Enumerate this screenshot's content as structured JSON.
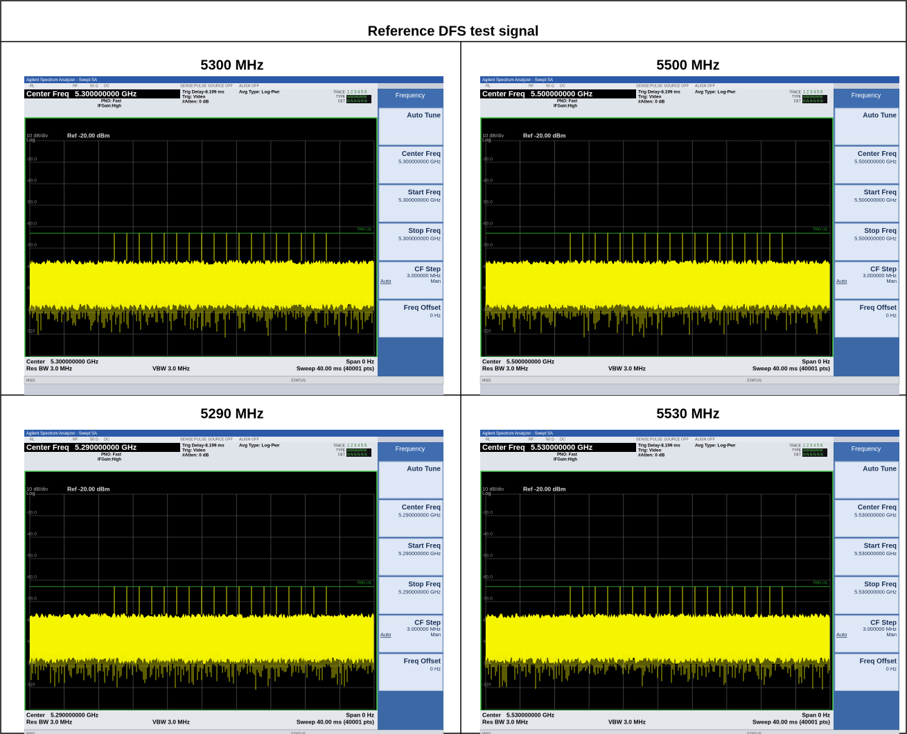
{
  "header": {
    "title": "Reference DFS test signal"
  },
  "analyzer": {
    "window_title": "Agilent Spectrum Analyzer - Swept SA",
    "status_row": [
      "RL",
      "RF",
      "50 Ω",
      "DC",
      "SENSE:PULSE",
      "SOURCE OFF",
      "ALIGN OFF"
    ],
    "center_freq_label": "Center Freq",
    "trig_delay": "Trig Delay-8.199 ms",
    "trig": "Trig: Video",
    "atten": "#Atten: 0 dB",
    "pno": "PNO: Fast",
    "ifgain": "IFGain:High",
    "avg_type": "Avg Type: Log-Pwr",
    "trace_labels": [
      "TRACE",
      "TYPE",
      "DET"
    ],
    "trace_numbers": "1 2 3 4 5 6",
    "trace_type": "WWWWWW",
    "trace_det": "N N N N N N",
    "scale": "10 dB/div",
    "log": "Log",
    "ref": "Ref -20.00 dBm",
    "trig_lvl": "TRIG LVL",
    "y_labels": [
      "-30.0",
      "-40.0",
      "-50.0",
      "-60.0",
      "-70.0",
      "-80.0",
      "-90.0",
      "-100",
      "-110"
    ],
    "center_label": "Center",
    "span": "Span 0 Hz",
    "res_bw": "Res BW 3.0 MHz",
    "vbw": "VBW 3.0 MHz",
    "sweep": "Sweep  40.00 ms (40001 pts)",
    "msg": "MSG",
    "status": "STATUS",
    "menu": "Frequency",
    "softkeys": [
      {
        "label": "Auto Tune"
      },
      {
        "label": "Center Freq"
      },
      {
        "label": "Start Freq"
      },
      {
        "label": "Stop Freq"
      },
      {
        "label": "CF Step",
        "value": "3.000000 MHz",
        "left": "Auto",
        "right": "Man"
      },
      {
        "label": "Freq Offset",
        "value": "0 Hz"
      }
    ]
  },
  "panels": [
    {
      "heading": "5300 MHz",
      "frequency": "5.300000000 GHz"
    },
    {
      "heading": "5500 MHz",
      "frequency": "5.500000000 GHz"
    },
    {
      "heading": "5290 MHz",
      "frequency": "5.290000000 GHz"
    },
    {
      "heading": "5530 MHz",
      "frequency": "5.530000000 GHz"
    }
  ]
}
